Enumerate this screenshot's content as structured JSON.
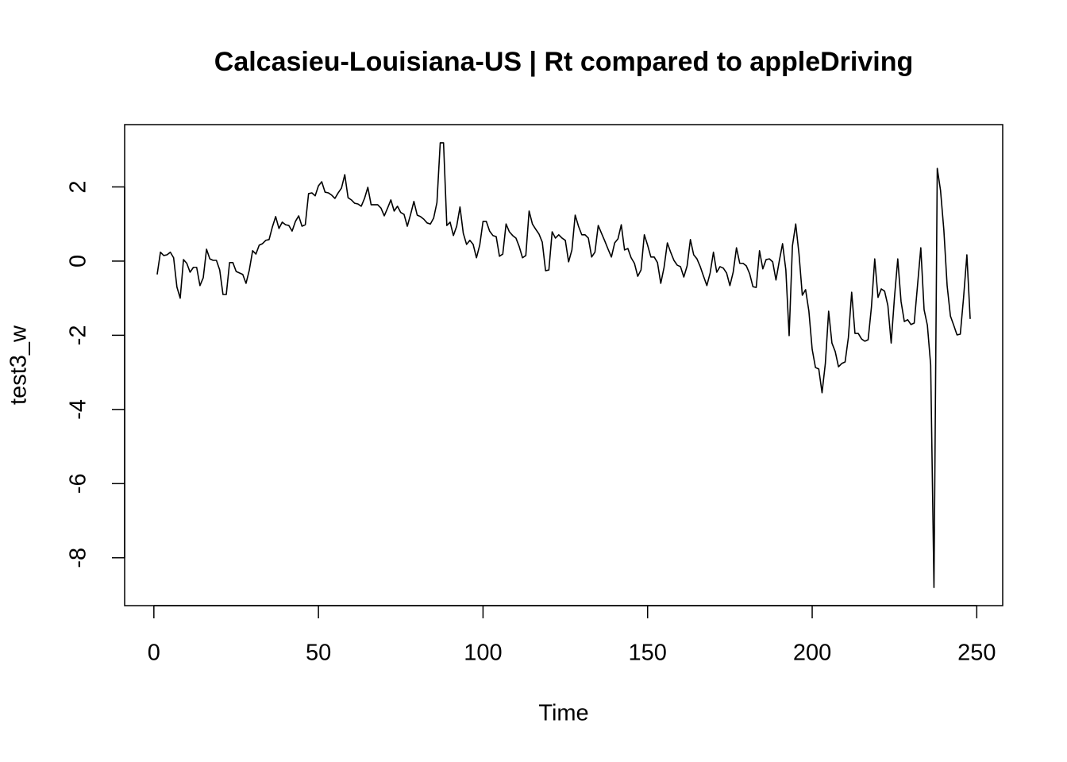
{
  "chart_data": {
    "type": "line",
    "title": "Calcasieu-Louisiana-US | Rt compared to appleDriving",
    "x_label": "Time",
    "y_label": "test3_w",
    "color": "#000000",
    "x": [
      1,
      2,
      3,
      4,
      5,
      6,
      7,
      8,
      9,
      10,
      11,
      12,
      13,
      14,
      15,
      16,
      17,
      18,
      19,
      20,
      21,
      22,
      23,
      24,
      25,
      26,
      27,
      28,
      29,
      30,
      31,
      32,
      33,
      34,
      35,
      36,
      37,
      38,
      39,
      40,
      41,
      42,
      43,
      44,
      45,
      46,
      47,
      48,
      49,
      50,
      51,
      52,
      53,
      54,
      55,
      56,
      57,
      58,
      59,
      60,
      61,
      62,
      63,
      64,
      65,
      66,
      67,
      68,
      69,
      70,
      71,
      72,
      73,
      74,
      75,
      76,
      77,
      78,
      79,
      80,
      81,
      82,
      83,
      84,
      85,
      86,
      87,
      88,
      89,
      90,
      91,
      92,
      93,
      94,
      95,
      96,
      97,
      98,
      99,
      100,
      101,
      102,
      103,
      104,
      105,
      106,
      107,
      108,
      109,
      110,
      111,
      112,
      113,
      114,
      115,
      116,
      117,
      118,
      119,
      120,
      121,
      122,
      123,
      124,
      125,
      126,
      127,
      128,
      129,
      130,
      131,
      132,
      133,
      134,
      135,
      136,
      137,
      138,
      139,
      140,
      141,
      142,
      143,
      144,
      145,
      146,
      147,
      148,
      149,
      150,
      151,
      152,
      153,
      154,
      155,
      156,
      157,
      158,
      159,
      160,
      161,
      162,
      163,
      164,
      165,
      166,
      167,
      168,
      169,
      170,
      171,
      172,
      173,
      174,
      175,
      176,
      177,
      178,
      179,
      180,
      181,
      182,
      183,
      184,
      185,
      186,
      187,
      188,
      189,
      190,
      191,
      192,
      193,
      194,
      195,
      196,
      197,
      198,
      199,
      200,
      201,
      202,
      203,
      204,
      205,
      206,
      207,
      208,
      209,
      210,
      211,
      212,
      213,
      214,
      215,
      216,
      217,
      218,
      219,
      220,
      221,
      222,
      223,
      224,
      225,
      226,
      227,
      228,
      229,
      230,
      231,
      232,
      233,
      234,
      235,
      236,
      237,
      238,
      239,
      240,
      241,
      242,
      243,
      244,
      245,
      246,
      247,
      248
    ],
    "values": [
      -0.36,
      0.24,
      0.15,
      0.17,
      0.24,
      0.09,
      -0.7,
      -1.0,
      0.04,
      -0.06,
      -0.3,
      -0.17,
      -0.17,
      -0.66,
      -0.45,
      0.32,
      0.06,
      0.02,
      0.02,
      -0.24,
      -0.9,
      -0.9,
      -0.04,
      -0.04,
      -0.28,
      -0.32,
      -0.36,
      -0.6,
      -0.24,
      0.28,
      0.19,
      0.43,
      0.47,
      0.56,
      0.58,
      0.92,
      1.2,
      0.88,
      1.05,
      0.98,
      0.96,
      0.81,
      1.07,
      1.22,
      0.94,
      0.98,
      1.82,
      1.84,
      1.76,
      2.03,
      2.14,
      1.86,
      1.84,
      1.78,
      1.69,
      1.84,
      1.97,
      2.33,
      1.71,
      1.65,
      1.56,
      1.54,
      1.48,
      1.69,
      1.99,
      1.52,
      1.52,
      1.52,
      1.43,
      1.22,
      1.43,
      1.65,
      1.35,
      1.48,
      1.31,
      1.26,
      0.94,
      1.26,
      1.61,
      1.24,
      1.2,
      1.13,
      1.03,
      1.0,
      1.16,
      1.58,
      3.19,
      3.19,
      0.96,
      1.05,
      0.69,
      0.94,
      1.46,
      0.75,
      0.45,
      0.56,
      0.45,
      0.09,
      0.43,
      1.07,
      1.07,
      0.81,
      0.69,
      0.66,
      0.13,
      0.19,
      1.0,
      0.79,
      0.69,
      0.62,
      0.39,
      0.09,
      0.15,
      1.35,
      1.0,
      0.86,
      0.73,
      0.51,
      -0.26,
      -0.24,
      0.79,
      0.62,
      0.71,
      0.62,
      0.56,
      -0.02,
      0.3,
      1.24,
      0.94,
      0.71,
      0.71,
      0.62,
      0.11,
      0.24,
      0.96,
      0.75,
      0.54,
      0.32,
      0.11,
      0.49,
      0.6,
      0.98,
      0.3,
      0.34,
      0.09,
      -0.06,
      -0.41,
      -0.24,
      0.71,
      0.43,
      0.11,
      0.11,
      -0.04,
      -0.6,
      -0.17,
      0.49,
      0.24,
      0.02,
      -0.11,
      -0.15,
      -0.43,
      -0.13,
      0.58,
      0.17,
      0.06,
      -0.15,
      -0.41,
      -0.66,
      -0.32,
      0.24,
      -0.3,
      -0.15,
      -0.19,
      -0.32,
      -0.66,
      -0.3,
      0.36,
      -0.06,
      -0.06,
      -0.13,
      -0.34,
      -0.69,
      -0.71,
      0.28,
      -0.21,
      0.04,
      0.06,
      -0.02,
      -0.51,
      0,
      0.47,
      -0.24,
      -2.01,
      0.41,
      1.0,
      0.19,
      -0.92,
      -0.77,
      -1.35,
      -2.38,
      -2.87,
      -2.91,
      -3.55,
      -2.76,
      -1.35,
      -2.21,
      -2.44,
      -2.85,
      -2.76,
      -2.72,
      -2.06,
      -0.84,
      -1.95,
      -1.95,
      -2.1,
      -2.16,
      -2.12,
      -1.24,
      0.06,
      -0.98,
      -0.75,
      -0.81,
      -1.2,
      -2.21,
      -0.98,
      0.06,
      -1.09,
      -1.63,
      -1.58,
      -1.71,
      -1.67,
      -0.66,
      0.36,
      -1.31,
      -1.73,
      -2.8,
      -8.8,
      2.5,
      1.9,
      0.84,
      -0.66,
      -1.48,
      -1.73,
      -1.99,
      -1.97,
      -0.98,
      0.17,
      -1.56
    ],
    "xlim": [
      -8.88,
      257.88
    ],
    "ylim": [
      -9.29,
      3.68
    ],
    "xticks": [
      0,
      50,
      100,
      150,
      200,
      250
    ],
    "yticks": [
      -8,
      -6,
      -4,
      -2,
      0,
      2
    ]
  }
}
